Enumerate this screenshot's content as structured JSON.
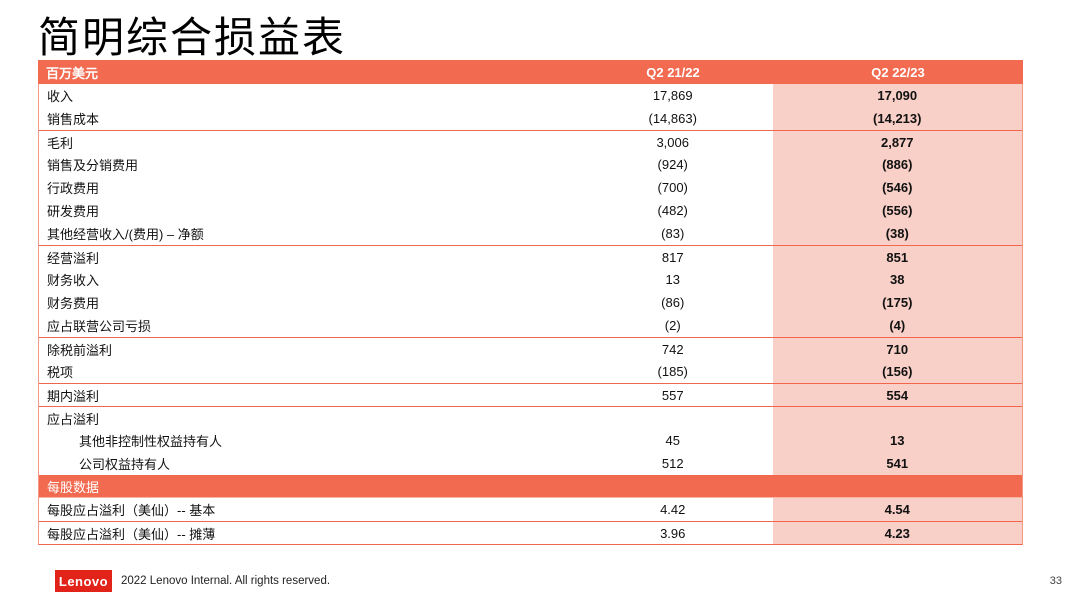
{
  "page": {
    "title": "简明综合损益表",
    "page_number": "33"
  },
  "table": {
    "unit_label": "百万美元",
    "columns": [
      "Q2 21/22",
      "Q2 22/23"
    ],
    "rows": [
      {
        "label": "收入",
        "v1": "17,869",
        "v2": "17,090",
        "indent": false,
        "line_above": false
      },
      {
        "label": "销售成本",
        "v1": "(14,863)",
        "v2": "(14,213)",
        "indent": false,
        "line_above": false
      },
      {
        "label": "毛利",
        "v1": "3,006",
        "v2": "2,877",
        "indent": false,
        "line_above": true
      },
      {
        "label": "销售及分销费用",
        "v1": "(924)",
        "v2": "(886)",
        "indent": false,
        "line_above": false
      },
      {
        "label": "行政费用",
        "v1": "(700)",
        "v2": "(546)",
        "indent": false,
        "line_above": false
      },
      {
        "label": "研发费用",
        "v1": "(482)",
        "v2": "(556)",
        "indent": false,
        "line_above": false
      },
      {
        "label": "其他经营收入/(费用) – 净额",
        "v1": "(83)",
        "v2": "(38)",
        "indent": false,
        "line_above": false
      },
      {
        "label": "经营溢利",
        "v1": "817",
        "v2": "851",
        "indent": false,
        "line_above": true
      },
      {
        "label": "财务收入",
        "v1": "13",
        "v2": "38",
        "indent": false,
        "line_above": false
      },
      {
        "label": "财务费用",
        "v1": "(86)",
        "v2": "(175)",
        "indent": false,
        "line_above": false
      },
      {
        "label": "应占联营公司亏损",
        "v1": "(2)",
        "v2": "(4)",
        "indent": false,
        "line_above": false
      },
      {
        "label": "除税前溢利",
        "v1": "742",
        "v2": "710",
        "indent": false,
        "line_above": true
      },
      {
        "label": "税项",
        "v1": "(185)",
        "v2": "(156)",
        "indent": false,
        "line_above": false
      },
      {
        "label": "期内溢利",
        "v1": "557",
        "v2": "554",
        "indent": false,
        "line_above": true
      },
      {
        "label": "应占溢利",
        "v1": "",
        "v2": "",
        "indent": false,
        "line_above": true
      },
      {
        "label": "其他非控制性权益持有人",
        "v1": "45",
        "v2": "13",
        "indent": true,
        "line_above": false
      },
      {
        "label": "公司权益持有人",
        "v1": "512",
        "v2": "541",
        "indent": true,
        "line_above": false
      }
    ],
    "section_header": "每股数据",
    "eps_rows": [
      {
        "label": "每股应占溢利（美仙）-- 基本",
        "v1": "4.42",
        "v2": "4.54",
        "indent": false,
        "line_above": false
      },
      {
        "label": "每股应占溢利（美仙）-- 摊薄",
        "v1": "3.96",
        "v2": "4.23",
        "indent": false,
        "line_above": true
      }
    ]
  },
  "footer": {
    "logo_text": "Lenovo",
    "copyright": "2022 Lenovo Internal. All rights reserved."
  },
  "colors": {
    "accent": "#F26B51",
    "highlight": "#F8D0C8",
    "divider": "#F2674C",
    "lenovo_red": "#E2231A"
  }
}
